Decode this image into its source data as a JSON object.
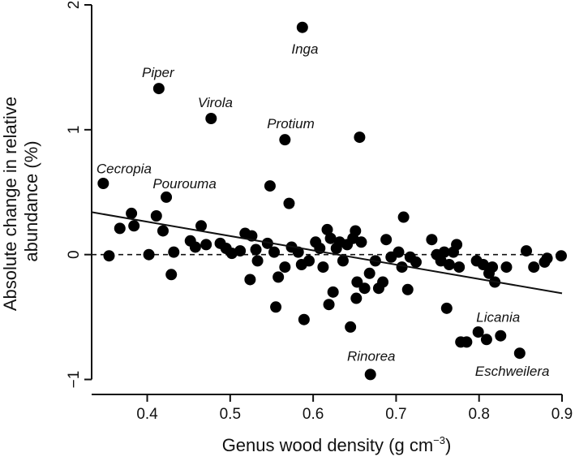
{
  "chart_data": {
    "type": "scatter",
    "title": "",
    "xlabel": "Genus wood density (g cm",
    "xlabel_sup": "−3",
    "xlabel_close": ")",
    "ylabel_line1": "Absolute change in relative",
    "ylabel_line2": "abundance (%)",
    "xlim": [
      0.333,
      0.9
    ],
    "ylim": [
      -1.12,
      2.0
    ],
    "xticks": [
      0.4,
      0.5,
      0.6,
      0.7,
      0.8,
      0.9
    ],
    "xtick_labels": [
      "0.4",
      "0.5",
      "0.6",
      "0.7",
      "0.8",
      "0.9"
    ],
    "yticks": [
      -1,
      0,
      1,
      2
    ],
    "ytick_labels": [
      "−1",
      "0",
      "1",
      "2"
    ],
    "grid": false,
    "reference_line": {
      "y": 0,
      "style": "dashed"
    },
    "fit_line": {
      "x": [
        0.333,
        0.9
      ],
      "y": [
        0.34,
        -0.31
      ]
    },
    "points": [
      {
        "x": 0.587,
        "y": 1.82
      },
      {
        "x": 0.414,
        "y": 1.33
      },
      {
        "x": 0.477,
        "y": 1.09
      },
      {
        "x": 0.566,
        "y": 0.92
      },
      {
        "x": 0.656,
        "y": 0.94
      },
      {
        "x": 0.347,
        "y": 0.57
      },
      {
        "x": 0.423,
        "y": 0.46
      },
      {
        "x": 0.548,
        "y": 0.55
      },
      {
        "x": 0.571,
        "y": 0.41
      },
      {
        "x": 0.381,
        "y": 0.33
      },
      {
        "x": 0.384,
        "y": 0.23
      },
      {
        "x": 0.411,
        "y": 0.31
      },
      {
        "x": 0.419,
        "y": 0.19
      },
      {
        "x": 0.367,
        "y": 0.21
      },
      {
        "x": 0.354,
        "y": -0.01
      },
      {
        "x": 0.402,
        "y": 0.0
      },
      {
        "x": 0.432,
        "y": 0.02
      },
      {
        "x": 0.429,
        "y": -0.16
      },
      {
        "x": 0.452,
        "y": 0.11
      },
      {
        "x": 0.458,
        "y": 0.06
      },
      {
        "x": 0.465,
        "y": 0.23
      },
      {
        "x": 0.471,
        "y": 0.08
      },
      {
        "x": 0.488,
        "y": 0.09
      },
      {
        "x": 0.495,
        "y": 0.05
      },
      {
        "x": 0.502,
        "y": 0.01
      },
      {
        "x": 0.512,
        "y": 0.03
      },
      {
        "x": 0.518,
        "y": 0.17
      },
      {
        "x": 0.526,
        "y": 0.15
      },
      {
        "x": 0.531,
        "y": 0.04
      },
      {
        "x": 0.533,
        "y": -0.05
      },
      {
        "x": 0.524,
        "y": -0.2
      },
      {
        "x": 0.545,
        "y": 0.09
      },
      {
        "x": 0.553,
        "y": 0.02
      },
      {
        "x": 0.558,
        "y": -0.18
      },
      {
        "x": 0.555,
        "y": -0.42
      },
      {
        "x": 0.566,
        "y": -0.1
      },
      {
        "x": 0.574,
        "y": 0.06
      },
      {
        "x": 0.582,
        "y": 0.02
      },
      {
        "x": 0.586,
        "y": -0.08
      },
      {
        "x": 0.589,
        "y": -0.52
      },
      {
        "x": 0.595,
        "y": -0.05
      },
      {
        "x": 0.603,
        "y": 0.1
      },
      {
        "x": 0.608,
        "y": 0.05
      },
      {
        "x": 0.612,
        "y": -0.1
      },
      {
        "x": 0.617,
        "y": 0.2
      },
      {
        "x": 0.621,
        "y": 0.13
      },
      {
        "x": 0.624,
        "y": -0.3
      },
      {
        "x": 0.619,
        "y": -0.4
      },
      {
        "x": 0.628,
        "y": 0.05
      },
      {
        "x": 0.632,
        "y": 0.1
      },
      {
        "x": 0.636,
        "y": -0.05
      },
      {
        "x": 0.641,
        "y": 0.08
      },
      {
        "x": 0.645,
        "y": -0.58
      },
      {
        "x": 0.648,
        "y": 0.13
      },
      {
        "x": 0.651,
        "y": 0.19
      },
      {
        "x": 0.653,
        "y": -0.22
      },
      {
        "x": 0.652,
        "y": -0.35
      },
      {
        "x": 0.658,
        "y": 0.1
      },
      {
        "x": 0.662,
        "y": -0.27
      },
      {
        "x": 0.668,
        "y": -0.15
      },
      {
        "x": 0.675,
        "y": -0.05
      },
      {
        "x": 0.679,
        "y": -0.27
      },
      {
        "x": 0.684,
        "y": -0.22
      },
      {
        "x": 0.688,
        "y": 0.12
      },
      {
        "x": 0.694,
        "y": -0.02
      },
      {
        "x": 0.703,
        "y": 0.02
      },
      {
        "x": 0.707,
        "y": -0.1
      },
      {
        "x": 0.709,
        "y": 0.3
      },
      {
        "x": 0.714,
        "y": -0.28
      },
      {
        "x": 0.717,
        "y": -0.02
      },
      {
        "x": 0.724,
        "y": -0.06
      },
      {
        "x": 0.743,
        "y": 0.12
      },
      {
        "x": 0.749,
        "y": 0.0
      },
      {
        "x": 0.754,
        "y": -0.05
      },
      {
        "x": 0.758,
        "y": 0.02
      },
      {
        "x": 0.761,
        "y": -0.43
      },
      {
        "x": 0.764,
        "y": -0.08
      },
      {
        "x": 0.769,
        "y": 0.02
      },
      {
        "x": 0.773,
        "y": 0.08
      },
      {
        "x": 0.776,
        "y": -0.1
      },
      {
        "x": 0.778,
        "y": -0.7
      },
      {
        "x": 0.785,
        "y": -0.7
      },
      {
        "x": 0.797,
        "y": -0.05
      },
      {
        "x": 0.799,
        "y": -0.62
      },
      {
        "x": 0.805,
        "y": -0.08
      },
      {
        "x": 0.809,
        "y": -0.68
      },
      {
        "x": 0.812,
        "y": -0.15
      },
      {
        "x": 0.816,
        "y": -0.1
      },
      {
        "x": 0.819,
        "y": -0.22
      },
      {
        "x": 0.826,
        "y": -0.65
      },
      {
        "x": 0.833,
        "y": -0.1
      },
      {
        "x": 0.849,
        "y": -0.79
      },
      {
        "x": 0.857,
        "y": 0.03
      },
      {
        "x": 0.866,
        "y": -0.1
      },
      {
        "x": 0.669,
        "y": -0.96
      },
      {
        "x": 0.879,
        "y": -0.06
      },
      {
        "x": 0.882,
        "y": -0.03
      },
      {
        "x": 0.899,
        "y": -0.01
      }
    ],
    "annotations": [
      {
        "text": "Inga",
        "x": 0.59,
        "y": 1.65
      },
      {
        "text": "Piper",
        "x": 0.413,
        "y": 1.46
      },
      {
        "text": "Virola",
        "x": 0.482,
        "y": 1.22
      },
      {
        "text": "Protium",
        "x": 0.573,
        "y": 1.05
      },
      {
        "text": "Cecropia",
        "x": 0.372,
        "y": 0.69
      },
      {
        "text": "Pourouma",
        "x": 0.445,
        "y": 0.57
      },
      {
        "text": "Licania",
        "x": 0.823,
        "y": -0.5
      },
      {
        "text": "Rinorea",
        "x": 0.67,
        "y": -0.81
      },
      {
        "text": "Eschweilera",
        "x": 0.84,
        "y": -0.93
      }
    ]
  }
}
